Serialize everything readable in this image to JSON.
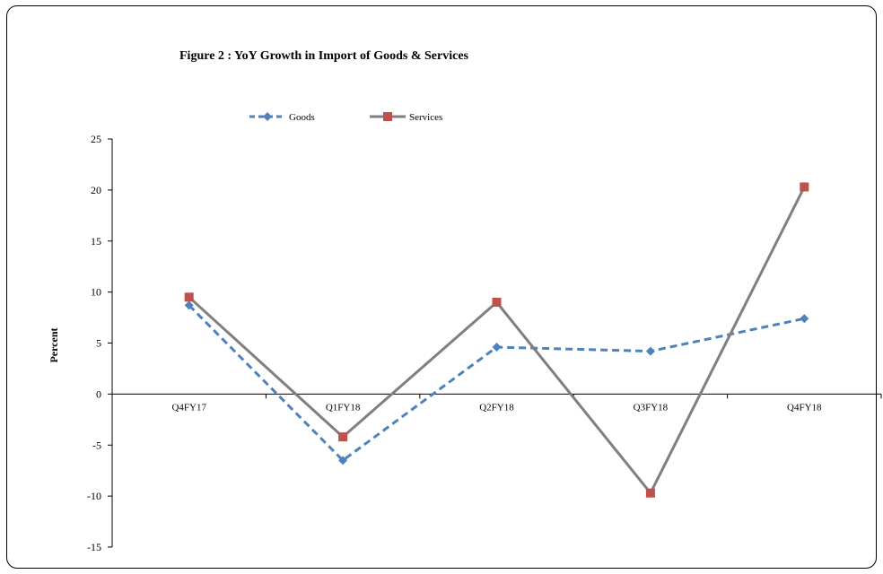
{
  "chart_data": {
    "type": "line",
    "title": "Figure 2 : YoY Growth in Import  of Goods & Services",
    "xlabel": "",
    "ylabel": "Percent",
    "ylim": [
      -15,
      25
    ],
    "ytick_step": 5,
    "categories": [
      "Q4FY17",
      "Q1FY18",
      "Q2FY18",
      "Q3FY18",
      "Q4FY18"
    ],
    "series": [
      {
        "name": "Goods",
        "values": [
          8.7,
          -6.5,
          4.6,
          4.2,
          7.4
        ],
        "color": "#4f81bd",
        "dash": true,
        "marker": "diamond"
      },
      {
        "name": "Services",
        "values": [
          9.5,
          -4.2,
          9.0,
          -9.7,
          20.3
        ],
        "color": "#808080",
        "lineColor": "#7f7f7f",
        "markerColor": "#c0504d",
        "dash": false,
        "marker": "square"
      }
    ],
    "legend_position": "top",
    "grid": false
  }
}
